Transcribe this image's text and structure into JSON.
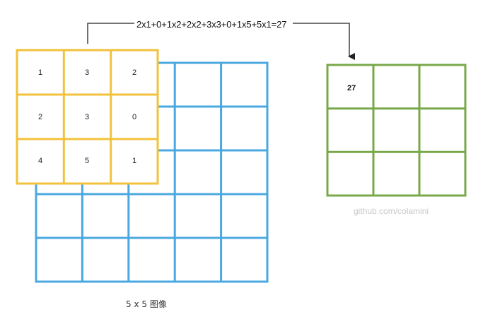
{
  "formula": "2x1+0+1x2+2x2+3x3+0+1x5+5x1=27",
  "image_label": "5 x 5 图像",
  "watermark": "github.com/colamini",
  "image_grid": {
    "rows": 5,
    "cols": 5
  },
  "kernel": {
    "rows": [
      [
        "1",
        "3",
        "2"
      ],
      [
        "2",
        "3",
        "0"
      ],
      [
        "4",
        "5",
        "1"
      ]
    ]
  },
  "output": {
    "rows": [
      [
        "27",
        "",
        ""
      ],
      [
        "",
        "",
        ""
      ],
      [
        "",
        "",
        ""
      ]
    ]
  },
  "colors": {
    "image_grid": "#4aa8e0",
    "kernel_grid": "#f2c23c",
    "output_grid": "#79a84a",
    "arrow": "#222222",
    "watermark": "#c8c8c8"
  }
}
